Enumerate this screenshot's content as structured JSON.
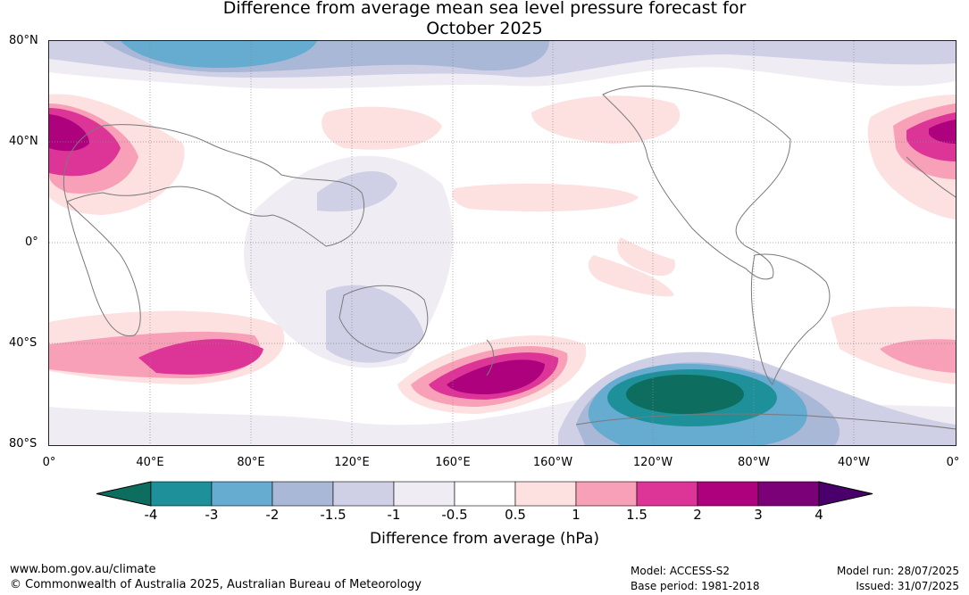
{
  "title": {
    "line1": "Difference from average mean sea level pressure forecast for",
    "line2": "October 2025"
  },
  "lat_labels": [
    "80°N",
    "40°N",
    "0°",
    "40°S",
    "80°S"
  ],
  "lon_labels": [
    "0°",
    "40°E",
    "80°E",
    "120°E",
    "160°E",
    "160°W",
    "120°W",
    "80°W",
    "40°W",
    "0°"
  ],
  "colorbar": {
    "ticks": [
      "-4",
      "-3",
      "-2",
      "-1.5",
      "-1",
      "-0.5",
      "0.5",
      "1",
      "1.5",
      "2",
      "3",
      "4"
    ],
    "colors": [
      "#0d6e5f",
      "#1e9099",
      "#66abd0",
      "#a8b8d6",
      "#cfd0e6",
      "#efecf4",
      "#ffffff",
      "#fde0e0",
      "#f8a0b8",
      "#dd3497",
      "#ae017e",
      "#7a0177",
      "#49006a"
    ],
    "label": "Difference from average (hPa)"
  },
  "footer": {
    "url": "www.bom.gov.au/climate",
    "copyright": "© Commonwealth of Australia 2025, Australian Bureau of Meteorology",
    "model": "Model: ACCESS-S2",
    "base_period": "Base period: 1981-2018",
    "model_run": "Model run: 28/07/2025",
    "issued": "Issued: 31/07/2025"
  }
}
